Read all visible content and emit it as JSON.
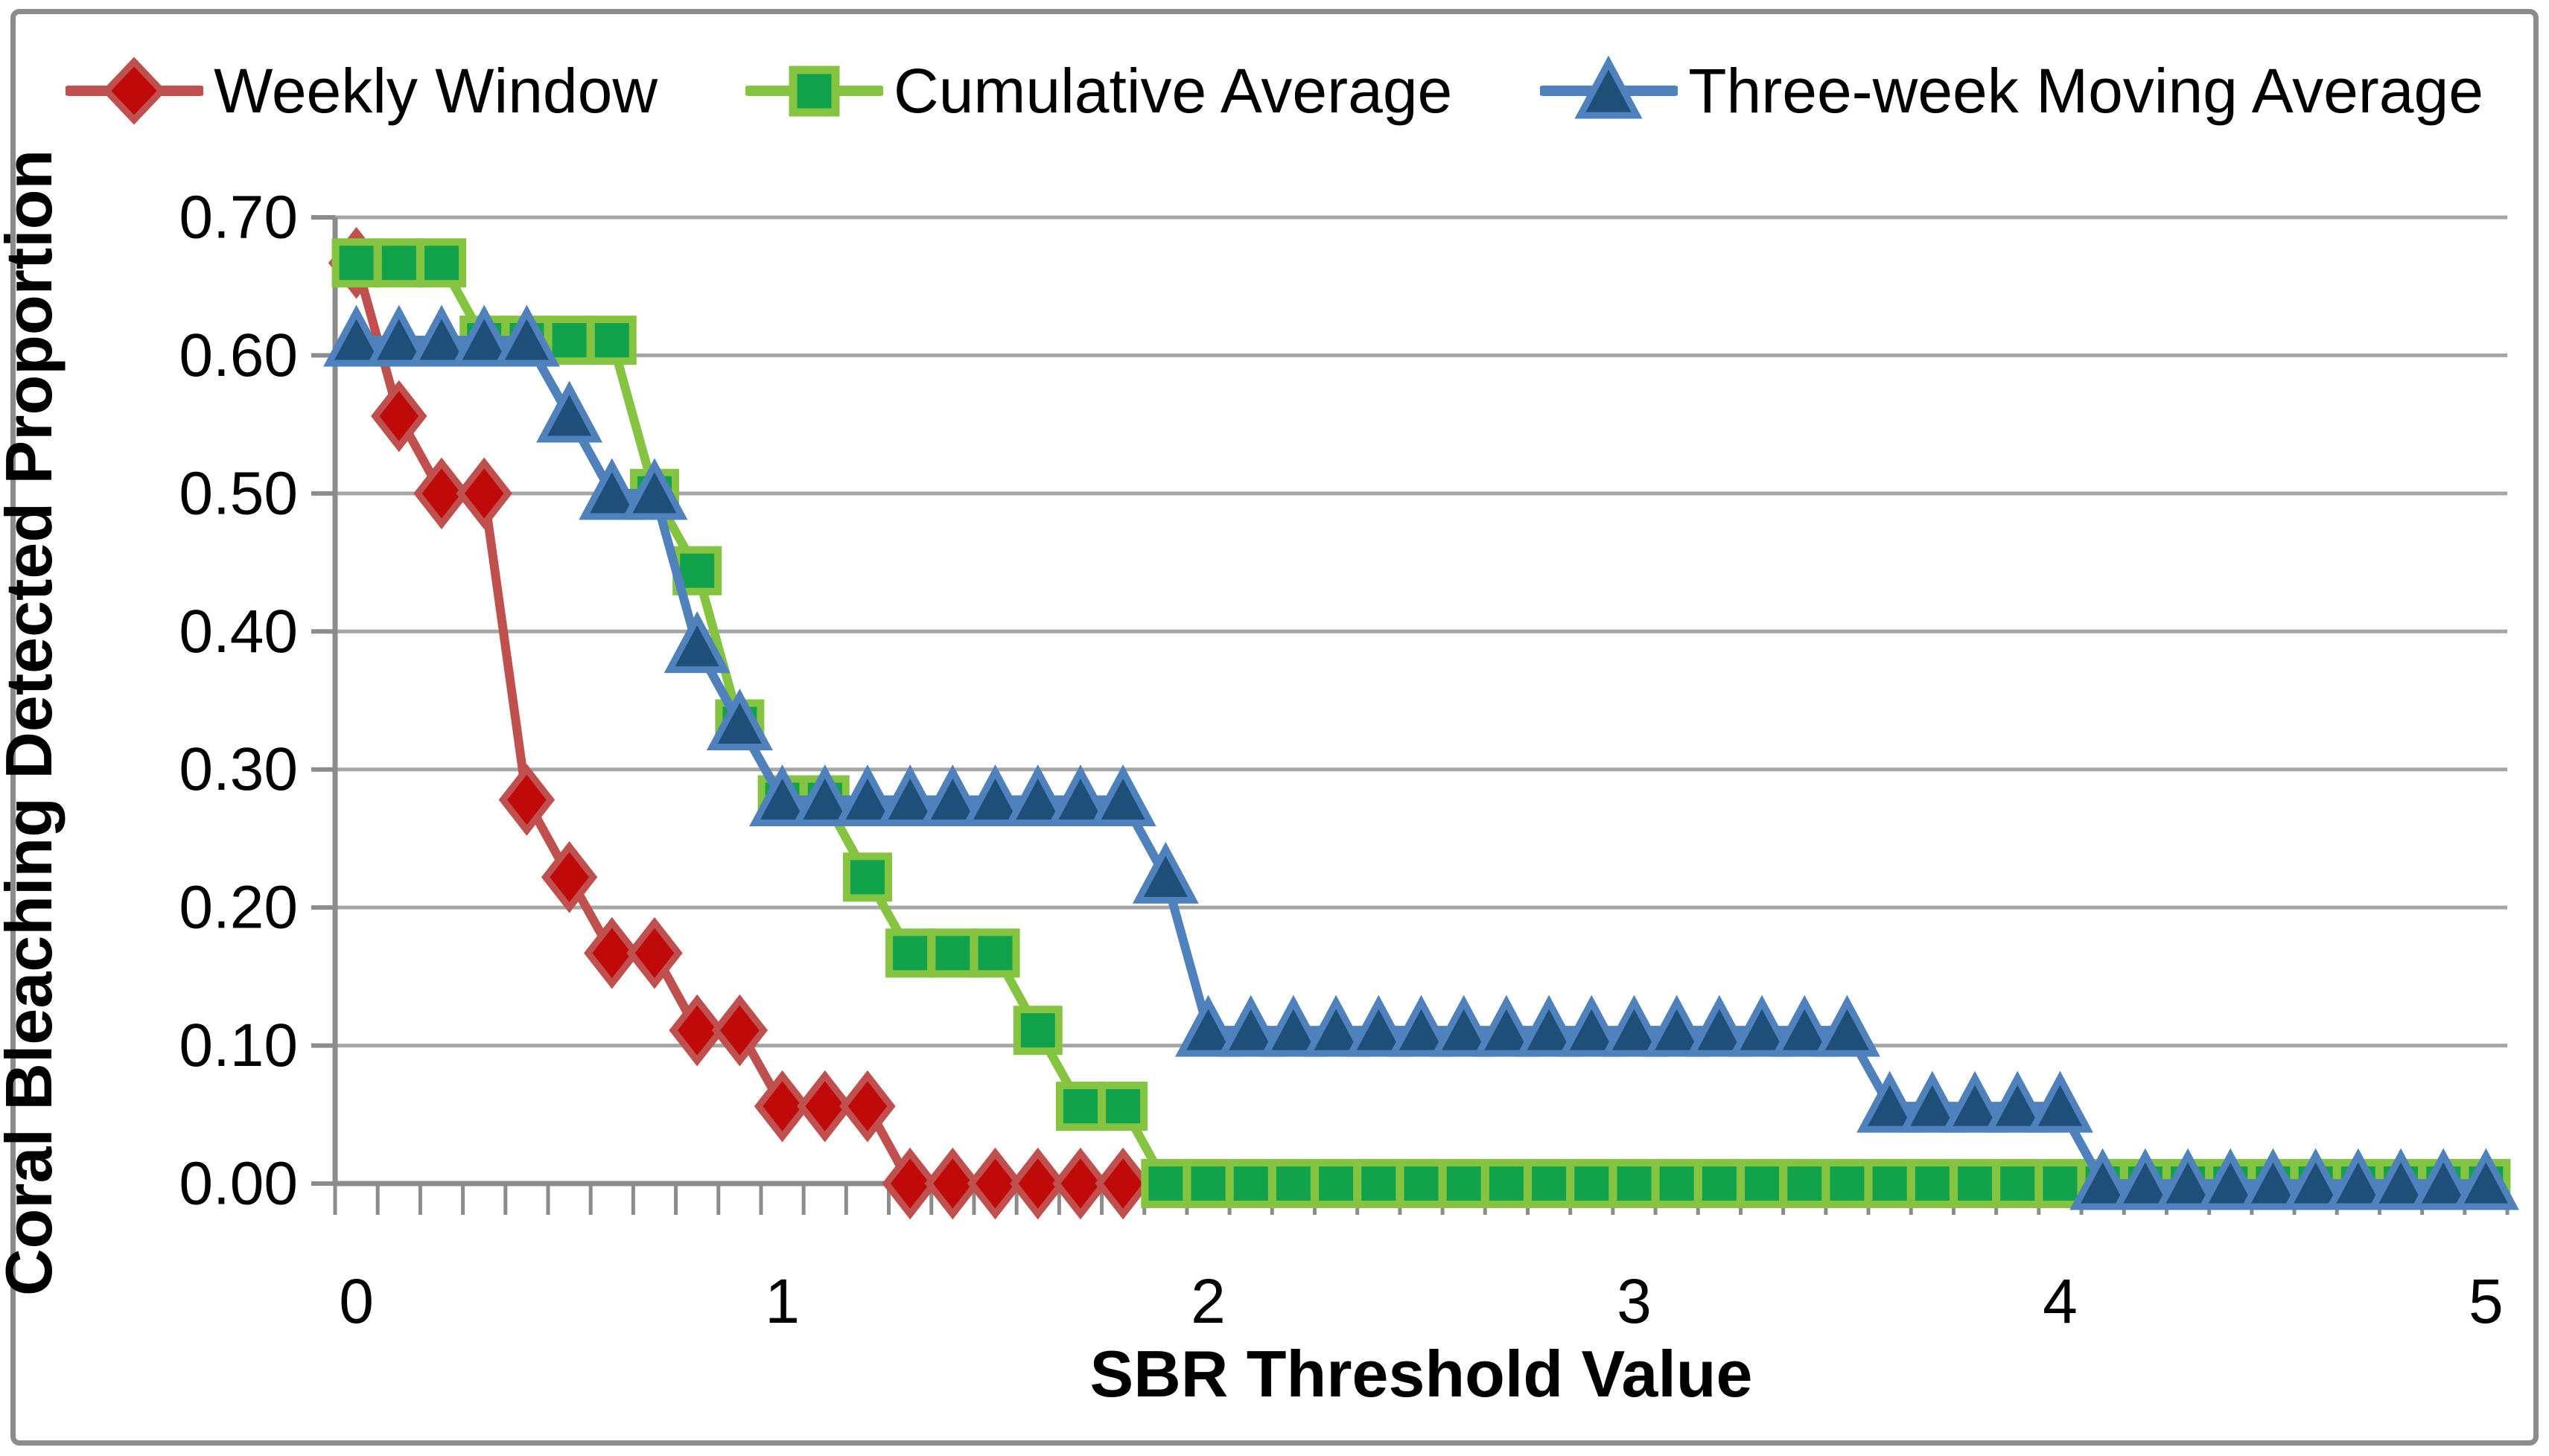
{
  "chart_data": {
    "type": "line",
    "title": "",
    "xlabel": "SBR Threshold Value",
    "ylabel": "Coral Bleaching Detected Proportion",
    "x_start": 0,
    "x_step": 0.1,
    "xlim": [
      0,
      5
    ],
    "ylim": [
      0,
      0.7
    ],
    "grid": "horizontal",
    "legend_position": "top",
    "x_tick_values": [
      0,
      1,
      2,
      3,
      4,
      5
    ],
    "x_tick_labels": [
      "0",
      "1",
      "2",
      "3",
      "4",
      "5"
    ],
    "y_tick_values": [
      0.0,
      0.1,
      0.2,
      0.3,
      0.4,
      0.5,
      0.6,
      0.7
    ],
    "y_tick_labels": [
      "0.00",
      "0.10",
      "0.20",
      "0.30",
      "0.40",
      "0.50",
      "0.60",
      "0.70"
    ],
    "colors": {
      "grid": "#A6A6A6",
      "axis": "#8C8C8C",
      "frame": "#8C8C8C",
      "text": "#000000"
    },
    "series": [
      {
        "name": "Weekly Window",
        "marker": "diamond",
        "line_color": "#C0504D",
        "marker_fill": "#C00A0A",
        "values": [
          0.667,
          0.556,
          0.5,
          0.5,
          0.278,
          0.222,
          0.167,
          0.167,
          0.111,
          0.111,
          0.056,
          0.056,
          0.056,
          0.0,
          0.0,
          0.0,
          0.0,
          0.0,
          0.0
        ]
      },
      {
        "name": "Cumulative Average",
        "marker": "square",
        "line_color": "#84C441",
        "marker_fill": "#12A24B",
        "values": [
          0.667,
          0.667,
          0.667,
          0.611,
          0.611,
          0.611,
          0.611,
          0.5,
          0.444,
          0.333,
          0.278,
          0.278,
          0.222,
          0.167,
          0.167,
          0.167,
          0.111,
          0.056,
          0.056,
          0.0,
          0.0,
          0.0,
          0.0,
          0.0,
          0.0,
          0.0,
          0.0,
          0.0,
          0.0,
          0.0,
          0.0,
          0.0,
          0.0,
          0.0,
          0.0,
          0.0,
          0.0,
          0.0,
          0.0,
          0.0,
          0.0,
          0.0,
          0.0,
          0.0,
          0.0,
          0.0,
          0.0,
          0.0,
          0.0,
          0.0,
          0.0
        ]
      },
      {
        "name": "Three-week Moving Average",
        "marker": "triangle",
        "line_color": "#4F81BD",
        "marker_fill": "#1F4E79",
        "values": [
          0.611,
          0.611,
          0.611,
          0.611,
          0.611,
          0.556,
          0.5,
          0.5,
          0.389,
          0.333,
          0.278,
          0.278,
          0.278,
          0.278,
          0.278,
          0.278,
          0.278,
          0.278,
          0.278,
          0.222,
          0.111,
          0.111,
          0.111,
          0.111,
          0.111,
          0.111,
          0.111,
          0.111,
          0.111,
          0.111,
          0.111,
          0.111,
          0.111,
          0.111,
          0.111,
          0.111,
          0.056,
          0.056,
          0.056,
          0.056,
          0.056,
          0.0,
          0.0,
          0.0,
          0.0,
          0.0,
          0.0,
          0.0,
          0.0,
          0.0,
          0.0
        ]
      }
    ]
  }
}
